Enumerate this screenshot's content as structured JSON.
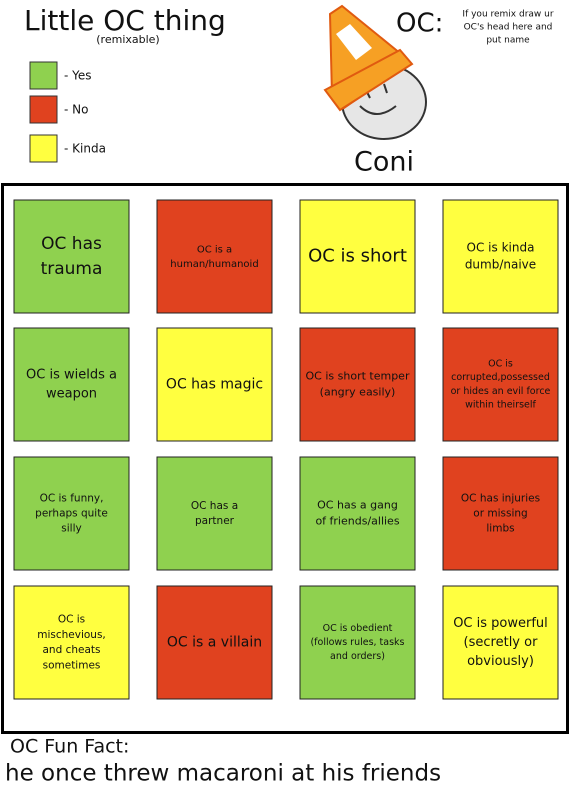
{
  "header": {
    "title": "Little OC thing",
    "subtitle": "(remixable)"
  },
  "legend": [
    {
      "label": "- Yes",
      "color": "#8fd14f"
    },
    {
      "label": "- No",
      "color": "#e0421f"
    },
    {
      "label": "- Kinda",
      "color": "#ffff40"
    }
  ],
  "oc": {
    "label": "OC:",
    "instruction": [
      "If you remix draw ur",
      "OC's head here and",
      "put name"
    ],
    "name": "Coni"
  },
  "grid": {
    "cells": [
      {
        "lines": [
          "OC has",
          "trauma"
        ],
        "color": "#8fd14f"
      },
      {
        "lines": [
          "OC is a",
          "human/humanoid"
        ],
        "color": "#e0421f"
      },
      {
        "lines": [
          "OC is short"
        ],
        "color": "#ffff40"
      },
      {
        "lines": [
          "OC is kinda",
          "dumb/naive"
        ],
        "color": "#ffff40"
      },
      {
        "lines": [
          "OC is wields a",
          "weapon"
        ],
        "color": "#8fd14f"
      },
      {
        "lines": [
          "OC has magic"
        ],
        "color": "#ffff40"
      },
      {
        "lines": [
          "OC is short temper",
          "(angry easily)"
        ],
        "color": "#e0421f"
      },
      {
        "lines": [
          "OC is",
          "corrupted,possessed",
          "or hides an evil force",
          "within theirself"
        ],
        "color": "#e0421f"
      },
      {
        "lines": [
          "OC is funny,",
          "perhaps quite",
          "silly"
        ],
        "color": "#8fd14f"
      },
      {
        "lines": [
          "OC has a",
          "partner"
        ],
        "color": "#8fd14f"
      },
      {
        "lines": [
          "OC has a gang",
          "of friends/allies"
        ],
        "color": "#8fd14f"
      },
      {
        "lines": [
          "OC has injuries",
          "or missing",
          "limbs"
        ],
        "color": "#e0421f"
      },
      {
        "lines": [
          "OC is",
          "mischevious,",
          "and cheats",
          "sometimes"
        ],
        "color": "#ffff40"
      },
      {
        "lines": [
          "OC is a villain"
        ],
        "color": "#e0421f"
      },
      {
        "lines": [
          "OC is obedient",
          "(follows rules, tasks",
          "and orders)"
        ],
        "color": "#8fd14f"
      },
      {
        "lines": [
          "OC is powerful",
          "(secretly or",
          "obviously)"
        ],
        "color": "#ffff40"
      }
    ]
  },
  "fun_fact": {
    "title": "OC Fun Fact:",
    "text": "he once threw macaroni at his friends"
  }
}
